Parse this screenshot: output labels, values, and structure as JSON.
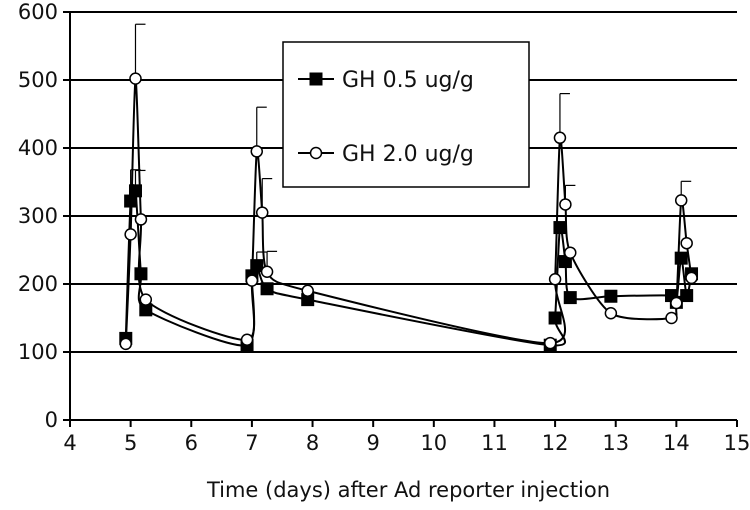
{
  "chart_data": {
    "type": "line",
    "title": "",
    "xlabel": "Time (days) after Ad reporter injection",
    "ylabel": "",
    "xlim": [
      4,
      15
    ],
    "ylim": [
      0,
      600
    ],
    "x_ticks": [
      4,
      5,
      6,
      7,
      8,
      9,
      10,
      11,
      12,
      13,
      14,
      15
    ],
    "y_ticks": [
      0,
      100,
      200,
      300,
      400,
      500,
      600
    ],
    "grid": "horizontal",
    "legend_position": "top-center",
    "series": [
      {
        "name": "GH 0.5 ug/g",
        "marker": "filled-square",
        "color": "#000000",
        "points": [
          {
            "x": 4.92,
            "y": 120,
            "err": 0
          },
          {
            "x": 5.0,
            "y": 322,
            "err": 0
          },
          {
            "x": 5.08,
            "y": 337,
            "err": 30
          },
          {
            "x": 5.17,
            "y": 215,
            "err": 0
          },
          {
            "x": 5.25,
            "y": 162,
            "err": 0
          },
          {
            "x": 6.92,
            "y": 110,
            "err": 0
          },
          {
            "x": 7.0,
            "y": 212,
            "err": 0
          },
          {
            "x": 7.08,
            "y": 227,
            "err": 20
          },
          {
            "x": 7.25,
            "y": 193,
            "err": 0
          },
          {
            "x": 7.92,
            "y": 177,
            "err": 0
          },
          {
            "x": 11.92,
            "y": 110,
            "err": 0
          },
          {
            "x": 12.0,
            "y": 150,
            "err": 0
          },
          {
            "x": 12.08,
            "y": 283,
            "err": 0
          },
          {
            "x": 12.17,
            "y": 233,
            "err": 0
          },
          {
            "x": 12.25,
            "y": 180,
            "err": 0
          },
          {
            "x": 12.92,
            "y": 182,
            "err": 0
          },
          {
            "x": 13.92,
            "y": 183,
            "err": 0
          },
          {
            "x": 14.0,
            "y": 173,
            "err": 0
          },
          {
            "x": 14.08,
            "y": 238,
            "err": 0
          },
          {
            "x": 14.17,
            "y": 183,
            "err": 0
          },
          {
            "x": 14.25,
            "y": 215,
            "err": 0
          }
        ]
      },
      {
        "name": "GH 2.0 ug/g",
        "marker": "open-circle",
        "color": "#000000",
        "points": [
          {
            "x": 4.92,
            "y": 112,
            "err": 0
          },
          {
            "x": 5.0,
            "y": 273,
            "err": 95
          },
          {
            "x": 5.08,
            "y": 502,
            "err": 80
          },
          {
            "x": 5.17,
            "y": 295,
            "err": 0
          },
          {
            "x": 5.25,
            "y": 177,
            "err": 0
          },
          {
            "x": 6.92,
            "y": 118,
            "err": 0
          },
          {
            "x": 7.0,
            "y": 205,
            "err": 0
          },
          {
            "x": 7.08,
            "y": 395,
            "err": 65
          },
          {
            "x": 7.17,
            "y": 305,
            "err": 50
          },
          {
            "x": 7.25,
            "y": 218,
            "err": 30
          },
          {
            "x": 7.92,
            "y": 190,
            "err": 0
          },
          {
            "x": 11.92,
            "y": 113,
            "err": 0
          },
          {
            "x": 12.0,
            "y": 207,
            "err": 0
          },
          {
            "x": 12.08,
            "y": 415,
            "err": 65
          },
          {
            "x": 12.17,
            "y": 317,
            "err": 28
          },
          {
            "x": 12.25,
            "y": 246,
            "err": 0
          },
          {
            "x": 12.92,
            "y": 157,
            "err": 0
          },
          {
            "x": 13.92,
            "y": 150,
            "err": 0
          },
          {
            "x": 14.0,
            "y": 172,
            "err": 0
          },
          {
            "x": 14.08,
            "y": 323,
            "err": 28
          },
          {
            "x": 14.17,
            "y": 260,
            "err": 0
          },
          {
            "x": 14.25,
            "y": 209,
            "err": 0
          }
        ]
      }
    ]
  }
}
